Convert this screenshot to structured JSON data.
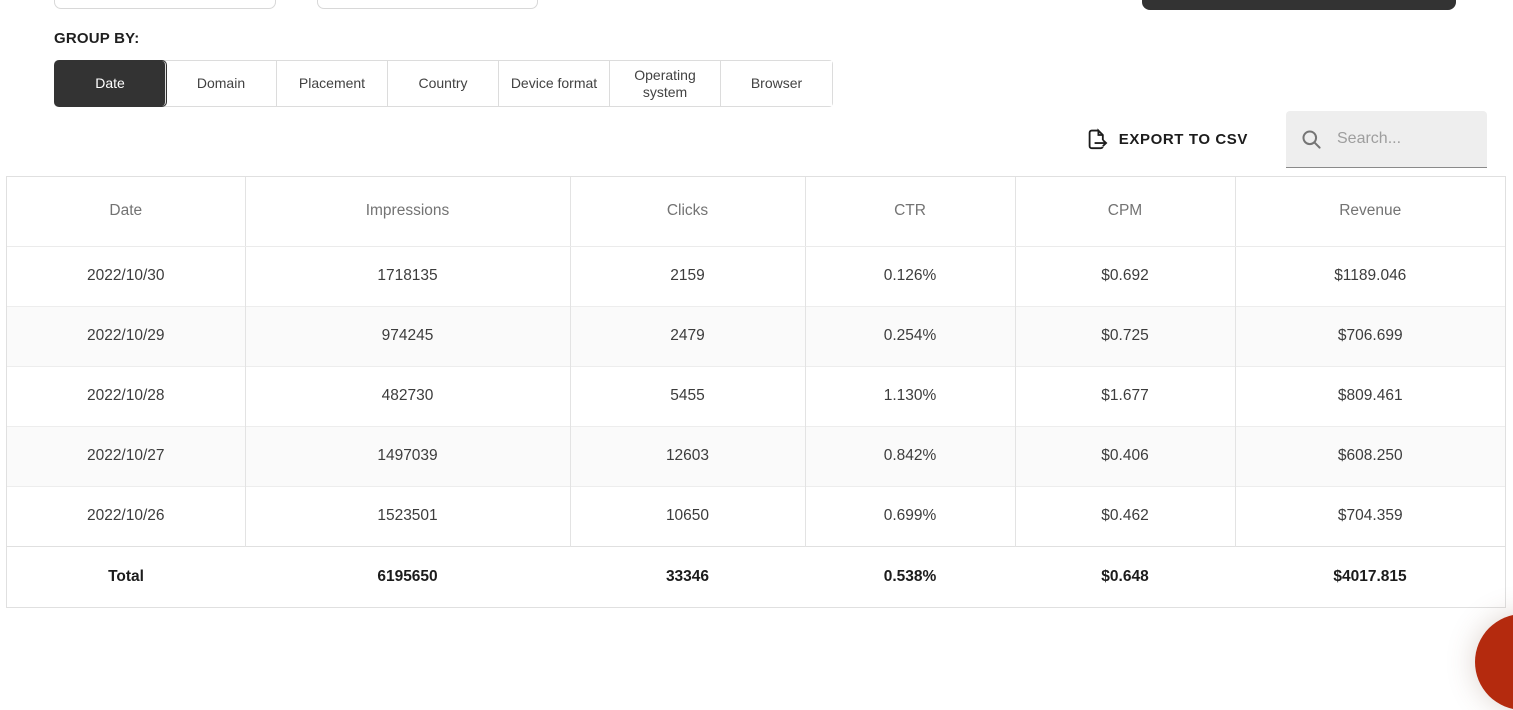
{
  "group_by": {
    "label": "GROUP BY:",
    "tabs": [
      {
        "label": "Date",
        "active": true
      },
      {
        "label": "Domain",
        "active": false
      },
      {
        "label": "Placement",
        "active": false
      },
      {
        "label": "Country",
        "active": false
      },
      {
        "label": "Device format",
        "active": false
      },
      {
        "label": "Operating system",
        "active": false
      },
      {
        "label": "Browser",
        "active": false
      }
    ]
  },
  "toolbar": {
    "export_label": "EXPORT TO CSV",
    "search_placeholder": "Search..."
  },
  "table": {
    "columns": [
      "Date",
      "Impressions",
      "Clicks",
      "CTR",
      "CPM",
      "Revenue"
    ],
    "rows": [
      [
        "2022/10/30",
        "1718135",
        "2159",
        "0.126%",
        "$0.692",
        "$1189.046"
      ],
      [
        "2022/10/29",
        "974245",
        "2479",
        "0.254%",
        "$0.725",
        "$706.699"
      ],
      [
        "2022/10/28",
        "482730",
        "5455",
        "1.130%",
        "$1.677",
        "$809.461"
      ],
      [
        "2022/10/27",
        "1497039",
        "12603",
        "0.842%",
        "$0.406",
        "$608.250"
      ],
      [
        "2022/10/26",
        "1523501",
        "10650",
        "0.699%",
        "$0.462",
        "$704.359"
      ]
    ],
    "total": [
      "Total",
      "6195650",
      "33346",
      "0.538%",
      "$0.648",
      "$4017.815"
    ]
  },
  "colors": {
    "active_tab_bg": "#333333",
    "tab_border": "#dcdcdc",
    "table_border": "#e0e0e0",
    "row_alt_bg": "#fafafa",
    "header_text": "#737373",
    "cell_text": "#3c3c3c",
    "search_bg": "#eeeeee",
    "fab_red": "#b42a0e"
  }
}
